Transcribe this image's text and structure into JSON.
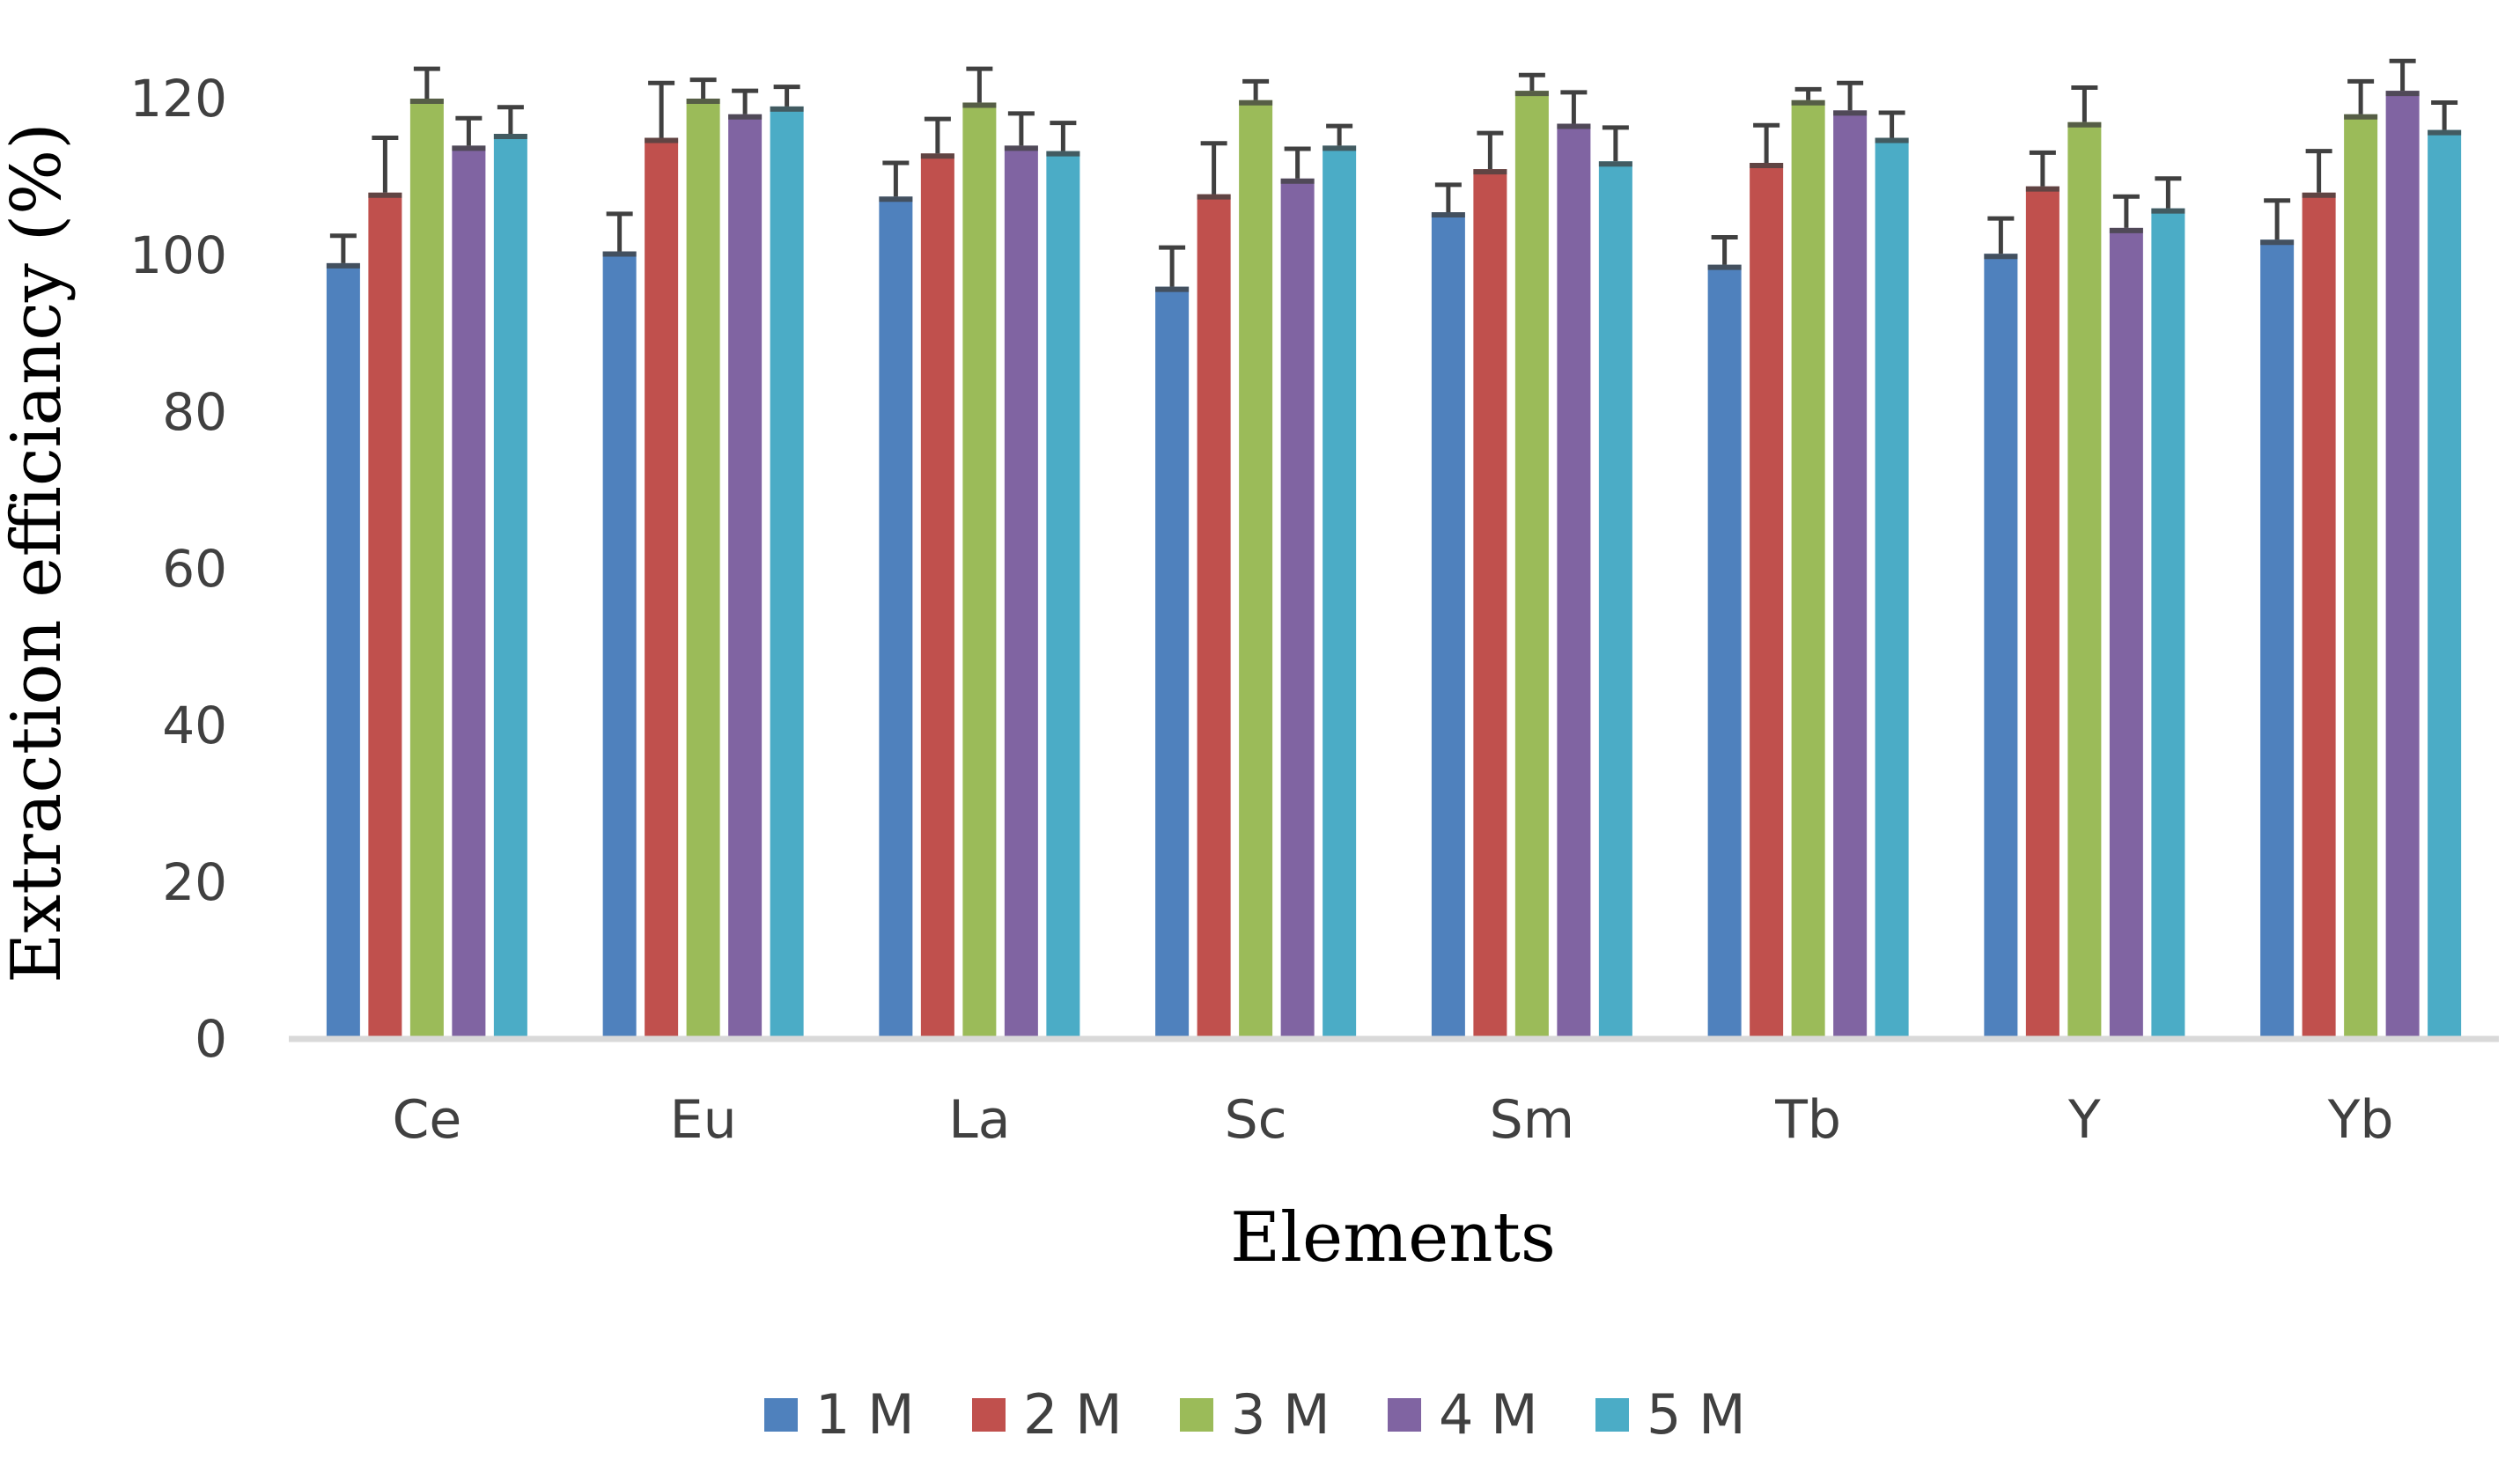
{
  "chart_data": {
    "type": "bar",
    "title": "",
    "xlabel": "Elements",
    "ylabel": "Extraction efficiancy (%)",
    "ylim": [
      0,
      120
    ],
    "yticks": [
      0,
      20,
      40,
      60,
      80,
      100,
      120
    ],
    "grid": false,
    "legend_position": "bottom",
    "categories": [
      "Ce",
      "Eu",
      "La",
      "Sc",
      "Sm",
      "Tb",
      "Y",
      "Yb"
    ],
    "series": [
      {
        "name": "1 M",
        "color": "#4F81BD",
        "values": [
          99.0,
          100.5,
          107.5,
          96.0,
          105.5,
          98.8,
          100.2,
          102.0
        ],
        "errors": [
          3.5,
          4.8,
          4.3,
          5.0,
          3.5,
          3.5,
          4.5,
          5.0
        ]
      },
      {
        "name": "2 M",
        "color": "#C0504D",
        "values": [
          108.0,
          115.0,
          113.0,
          107.8,
          111.0,
          111.8,
          108.8,
          108.0
        ],
        "errors": [
          7.0,
          7.0,
          4.4,
          6.5,
          4.6,
          4.8,
          4.3,
          5.3
        ]
      },
      {
        "name": "3 M",
        "color": "#9BBB59",
        "values": [
          120.0,
          120.0,
          119.5,
          119.8,
          121.0,
          119.8,
          117.0,
          118.0
        ],
        "errors": [
          3.8,
          2.4,
          4.3,
          2.4,
          2.0,
          1.4,
          4.4,
          4.2
        ]
      },
      {
        "name": "4 M",
        "color": "#8064A2",
        "values": [
          114.0,
          118.0,
          114.0,
          109.8,
          116.8,
          118.5,
          103.5,
          121.0
        ],
        "errors": [
          3.5,
          3.0,
          4.1,
          3.8,
          4.0,
          3.5,
          4.0,
          3.8
        ]
      },
      {
        "name": "5 M",
        "color": "#4BACC6",
        "values": [
          115.5,
          119.0,
          113.3,
          114.0,
          112.0,
          115.0,
          106.0,
          116.0
        ],
        "errors": [
          3.4,
          2.5,
          3.6,
          2.5,
          4.3,
          3.2,
          3.8,
          3.5
        ]
      }
    ]
  }
}
